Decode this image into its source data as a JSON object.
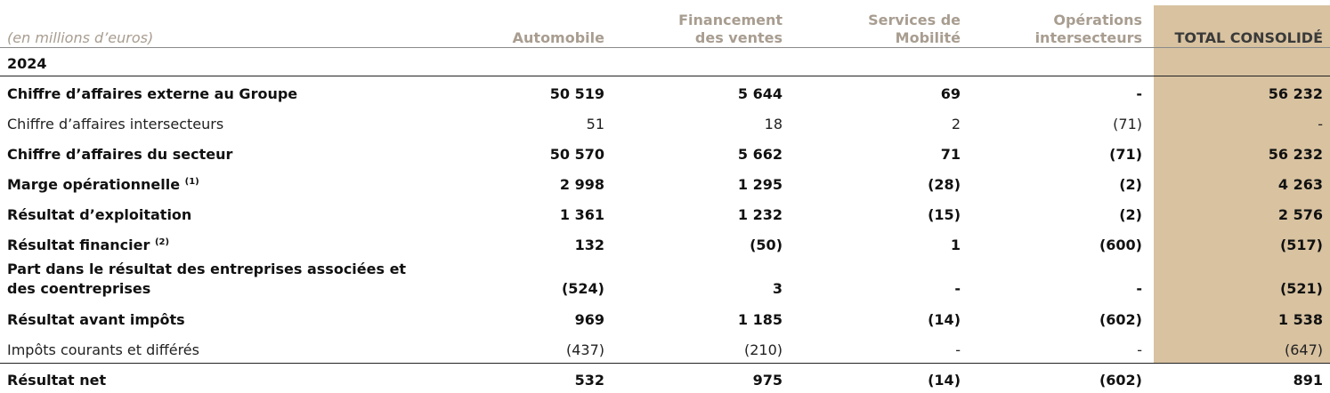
{
  "unit_label": "(en millions d’euros)",
  "headers": {
    "automobile": "Automobile",
    "financement_l1": "Financement",
    "financement_l2": "des ventes",
    "services_l1": "Services de",
    "services_l2": "Mobilité",
    "operations_l1": "Opérations",
    "operations_l2": "intersecteurs",
    "total": "TOTAL CONSOLIDÉ"
  },
  "year": "2024",
  "rows": [
    {
      "label": "Chiffre d’affaires externe au Groupe",
      "note": "",
      "values": [
        "50 519",
        "5 644",
        "69",
        "-",
        "56 232"
      ]
    },
    {
      "label": "Chiffre d’affaires intersecteurs",
      "note": "",
      "values": [
        "51",
        "18",
        "2",
        "(71)",
        "-"
      ]
    },
    {
      "label": "Chiffre d’affaires du secteur",
      "note": "",
      "values": [
        "50 570",
        "5 662",
        "71",
        "(71)",
        "56 232"
      ]
    },
    {
      "label": "Marge opérationnelle",
      "note": "(1)",
      "values": [
        "2 998",
        "1 295",
        "(28)",
        "(2)",
        "4 263"
      ]
    },
    {
      "label": "Résultat d’exploitation",
      "note": "",
      "values": [
        "1 361",
        "1 232",
        "(15)",
        "(2)",
        "2 576"
      ]
    },
    {
      "label": "Résultat financier",
      "note": "(2)",
      "values": [
        "132",
        "(50)",
        "1",
        "(600)",
        "(517)"
      ]
    },
    {
      "label_l1": "Part dans le résultat des entreprises associées et",
      "label_l2": "des coentreprises",
      "values": [
        "(524)",
        "3",
        "-",
        "-",
        "(521)"
      ]
    },
    {
      "label": "Résultat avant impôts",
      "note": "",
      "values": [
        "969",
        "1 185",
        "(14)",
        "(602)",
        "1 538"
      ]
    },
    {
      "label": "Impôts courants et différés",
      "note": "",
      "values": [
        "(437)",
        "(210)",
        "-",
        "-",
        "(647)"
      ]
    },
    {
      "label": "Résultat net",
      "note": "",
      "values": [
        "532",
        "975",
        "(14)",
        "(602)",
        "891"
      ]
    }
  ]
}
